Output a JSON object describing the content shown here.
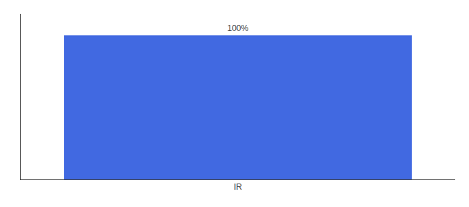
{
  "chart_data": {
    "type": "bar",
    "categories": [
      "IR"
    ],
    "values": [
      100
    ],
    "value_labels": [
      "100%"
    ],
    "data_labels": true,
    "color": "#4169e1",
    "ylim": [
      0,
      115
    ],
    "tick_labels": "x",
    "grid": false
  }
}
